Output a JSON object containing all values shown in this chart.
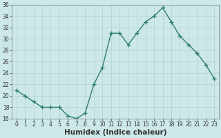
{
  "x": [
    0,
    1,
    2,
    3,
    4,
    5,
    6,
    7,
    8,
    9,
    10,
    11,
    12,
    13,
    14,
    15,
    16,
    17,
    18,
    19,
    20,
    21,
    22,
    23
  ],
  "y": [
    21,
    20,
    19,
    18,
    18,
    18,
    16.5,
    16,
    17,
    22,
    25,
    31,
    31,
    29,
    31,
    33,
    34,
    35.5,
    33,
    30.5,
    29,
    27.5,
    25.5,
    23
  ],
  "line_color": "#2e7d6e",
  "marker": "+",
  "marker_size": 4,
  "marker_lw": 1.0,
  "line_width": 1.0,
  "bg_color": "#cce8e8",
  "grid_color": "#b8d4d4",
  "xlabel": "Humidex (Indice chaleur)",
  "ylim": [
    16,
    36
  ],
  "xlim": [
    -0.5,
    23.5
  ],
  "yticks": [
    16,
    18,
    20,
    22,
    24,
    26,
    28,
    30,
    32,
    34,
    36
  ],
  "xticks": [
    0,
    1,
    2,
    3,
    4,
    5,
    6,
    7,
    8,
    9,
    10,
    11,
    12,
    13,
    14,
    15,
    16,
    17,
    18,
    19,
    20,
    21,
    22,
    23
  ],
  "tick_fontsize": 5.5,
  "xlabel_fontsize": 7.5,
  "tick_color": "#333333",
  "axis_color": "#888888",
  "spine_color": "#888888"
}
